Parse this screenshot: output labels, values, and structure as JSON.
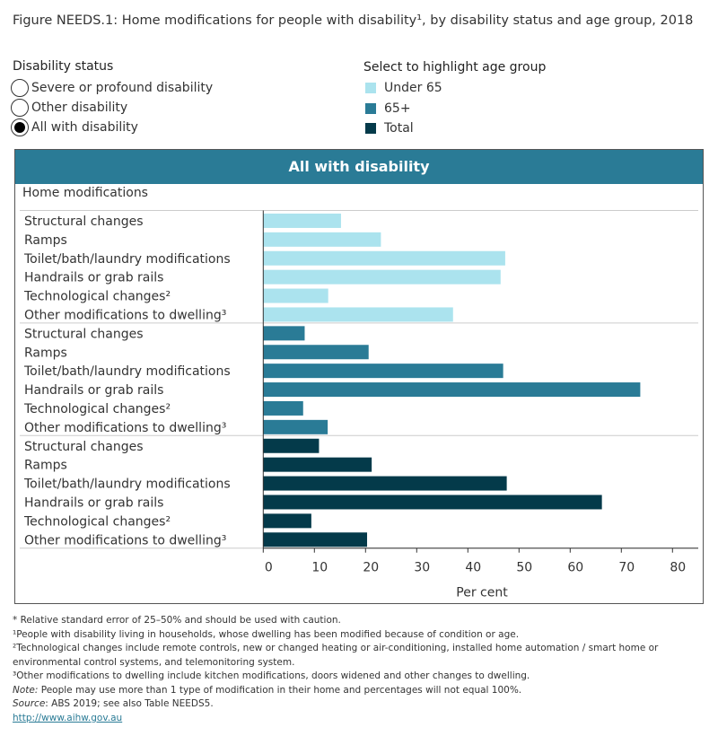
{
  "title": "Figure NEEDS.1: Home modifications for people with disability¹, by disability status and age group, 2018",
  "disability_status": {
    "heading": "Disability status",
    "options": [
      "Severe or profound disability",
      "Other disability",
      "All with disability"
    ],
    "selected": "All with disability"
  },
  "age_legend": {
    "heading": "Select to highlight age group",
    "items": [
      {
        "label": "Under 65",
        "color": "#abe3ee"
      },
      {
        "label": "65+",
        "color": "#2a7b96"
      },
      {
        "label": "Total",
        "color": "#043a4a"
      }
    ]
  },
  "chart_data": {
    "type": "bar",
    "orientation": "horizontal",
    "title": "All with disability",
    "ylabel": "Home modifications",
    "xlabel": "Per cent",
    "xlim": [
      0,
      80
    ],
    "xticks": [
      0,
      10,
      20,
      30,
      40,
      50,
      60,
      70,
      80
    ],
    "categories": [
      "Structural changes",
      "Ramps",
      "Toilet/bath/laundry modifications",
      "Handrails or grab rails",
      "Technological changes²",
      "Other modifications to dwelling³"
    ],
    "series": [
      {
        "name": "Under 65",
        "color": "#abe3ee",
        "values": [
          15.2,
          23.0,
          47.3,
          46.4,
          12.7,
          37.1
        ]
      },
      {
        "name": "65+",
        "color": "#2a7b96",
        "values": [
          8.1,
          20.6,
          46.9,
          73.7,
          7.8,
          12.6
        ]
      },
      {
        "name": "Total",
        "color": "#043a4a",
        "values": [
          10.9,
          21.2,
          47.6,
          66.2,
          9.4,
          20.3
        ]
      }
    ],
    "grid": false
  },
  "footnotes": {
    "rse": "* Relative standard error of 25–50% and should be used with caution.",
    "n1": "¹People with disability living in households, whose dwelling has been modified because of condition or age.",
    "n2": "²Technological changes include remote controls, new or changed heating or air-conditioning, installed home automation / smart home or environmental control systems, and telemonitoring system.",
    "n3": "³Other modifications to dwelling include kitchen modifications, doors widened and other changes to dwelling.",
    "note_label": "Note:",
    "note": " People may use more than 1 type of modification in their home and percentages will not equal 100%.",
    "source_label": "Source",
    "source": ": ABS 2019; see also Table NEEDS5.",
    "link": "http://www.aihw.gov.au"
  }
}
